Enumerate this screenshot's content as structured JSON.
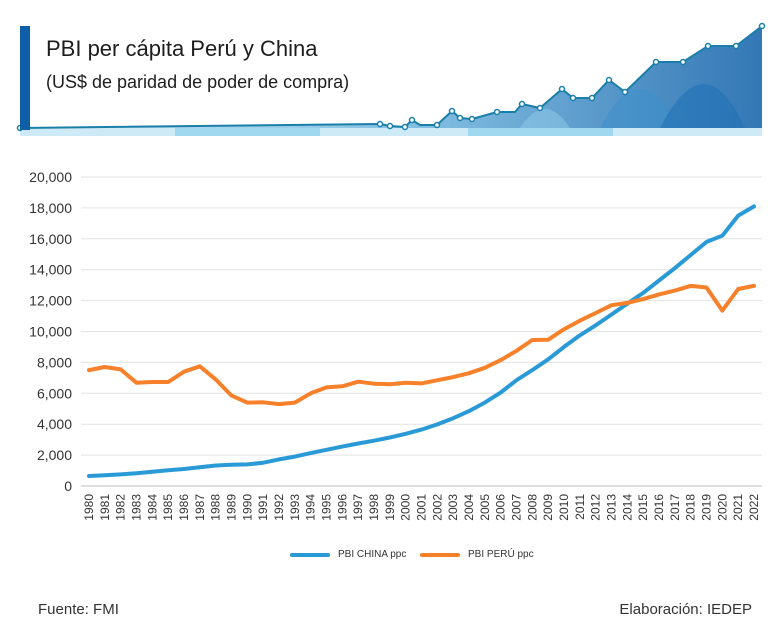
{
  "header": {
    "title": "PBI per cápita Perú y China",
    "subtitle": "(US$ de paridad de poder de compra)"
  },
  "footer": {
    "source": "Fuente: FMI",
    "credit": "Elaboración: IEDEP"
  },
  "colors": {
    "china": "#2a9ad6",
    "peru": "#f7812b",
    "accent": "#0f5fa8",
    "grid": "#e3e3e3"
  },
  "chart_data": {
    "type": "line",
    "x": [
      "1980",
      "1981",
      "1982",
      "1983",
      "1984",
      "1985",
      "1986",
      "1987",
      "1988",
      "1989",
      "1990",
      "1991",
      "1992",
      "1993",
      "1994",
      "1995",
      "1996",
      "1997",
      "1998",
      "1999",
      "2000",
      "2001",
      "2002",
      "2003",
      "2004",
      "2005",
      "2006",
      "2007",
      "2008",
      "2009",
      "2010",
      "2011",
      "2012",
      "2013",
      "2014",
      "2015",
      "2016",
      "2017",
      "2018",
      "2019",
      "2020",
      "2021",
      "2022"
    ],
    "series": [
      {
        "name": "PBI CHINA ppc",
        "values": [
          650,
          700,
          750,
          830,
          920,
          1020,
          1100,
          1210,
          1330,
          1370,
          1400,
          1510,
          1720,
          1900,
          2130,
          2340,
          2550,
          2750,
          2930,
          3140,
          3380,
          3650,
          3990,
          4390,
          4850,
          5400,
          6050,
          6850,
          7500,
          8200,
          9000,
          9750,
          10400,
          11100,
          11800,
          12500,
          13300,
          14100,
          14950,
          15800,
          16200,
          17500,
          18100
        ]
      },
      {
        "name": "PBI PERÚ ppc",
        "values": [
          7500,
          7700,
          7550,
          6680,
          6730,
          6730,
          7400,
          7750,
          6900,
          5850,
          5400,
          5420,
          5300,
          5400,
          6000,
          6380,
          6450,
          6750,
          6620,
          6590,
          6680,
          6640,
          6850,
          7050,
          7300,
          7650,
          8150,
          8750,
          9450,
          9470,
          10150,
          10700,
          11200,
          11700,
          11850,
          12100,
          12400,
          12650,
          12950,
          12850,
          11350,
          12750,
          12950
        ]
      }
    ],
    "yticks": [
      "0",
      "2,000",
      "4,000",
      "6,000",
      "8,000",
      "10,000",
      "12,000",
      "14,000",
      "16,000",
      "18,000",
      "20,000"
    ],
    "ylim": [
      0,
      20000
    ],
    "grid": true,
    "legend": "bottom-center"
  }
}
